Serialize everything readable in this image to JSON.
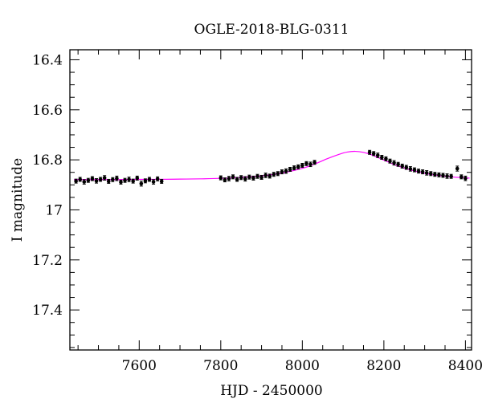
{
  "chart_data": {
    "type": "scatter",
    "title": "OGLE-2018-BLG-0311",
    "xlabel": "HJD - 2450000",
    "ylabel": "I magnitude",
    "xlim": [
      7430,
      8415
    ],
    "ylim": [
      17.56,
      16.36
    ],
    "y_inverted": true,
    "x_ticks": [
      {
        "value": 7600,
        "label": "7600"
      },
      {
        "value": 7800,
        "label": "7800"
      },
      {
        "value": 8000,
        "label": "8000"
      },
      {
        "value": 8200,
        "label": "8200"
      },
      {
        "value": 8400,
        "label": "8400"
      }
    ],
    "y_ticks": [
      {
        "value": 16.4,
        "label": "16.4"
      },
      {
        "value": 16.6,
        "label": "16.6"
      },
      {
        "value": 16.8,
        "label": "16.8"
      },
      {
        "value": 17.0,
        "label": "17"
      },
      {
        "value": 17.2,
        "label": "17.2"
      },
      {
        "value": 17.4,
        "label": "17.4"
      }
    ],
    "grid": false,
    "legend": "none",
    "colors": {
      "points": "#000000",
      "model": "#ff00ff",
      "axes": "#000000"
    },
    "series": [
      {
        "kind": "points_with_errorbars",
        "x": [
          7445,
          7455,
          7465,
          7475,
          7485,
          7495,
          7505,
          7515,
          7525,
          7535,
          7545,
          7555,
          7565,
          7575,
          7585,
          7595,
          7605,
          7615,
          7625,
          7635,
          7645,
          7655,
          7800,
          7810,
          7820,
          7830,
          7840,
          7850,
          7860,
          7870,
          7880,
          7890,
          7900,
          7910,
          7920,
          7930,
          7940,
          7950,
          7960,
          7970,
          7980,
          7990,
          8000,
          8010,
          8020,
          8030,
          8165,
          8175,
          8185,
          8195,
          8205,
          8215,
          8225,
          8235,
          8245,
          8255,
          8265,
          8275,
          8285,
          8295,
          8305,
          8315,
          8325,
          8335,
          8345,
          8355,
          8365,
          8380,
          8390,
          8400
        ],
        "y": [
          16.885,
          16.878,
          16.888,
          16.882,
          16.875,
          16.884,
          16.878,
          16.872,
          16.886,
          16.879,
          16.874,
          16.889,
          16.882,
          16.878,
          16.885,
          16.873,
          16.895,
          16.884,
          16.878,
          16.888,
          16.876,
          16.886,
          16.872,
          16.88,
          16.875,
          16.868,
          16.878,
          16.871,
          16.876,
          16.869,
          16.873,
          16.866,
          16.87,
          16.862,
          16.865,
          16.858,
          16.855,
          16.848,
          16.845,
          16.838,
          16.832,
          16.828,
          16.822,
          16.815,
          16.818,
          16.81,
          16.77,
          16.775,
          16.782,
          16.79,
          16.796,
          16.805,
          16.812,
          16.818,
          16.825,
          16.83,
          16.836,
          16.84,
          16.845,
          16.848,
          16.852,
          16.855,
          16.858,
          16.86,
          16.862,
          16.865,
          16.866,
          16.835,
          16.868,
          16.874
        ],
        "yerr": [
          0.008,
          0.008,
          0.009,
          0.008,
          0.008,
          0.009,
          0.008,
          0.009,
          0.008,
          0.008,
          0.009,
          0.008,
          0.008,
          0.009,
          0.008,
          0.008,
          0.01,
          0.008,
          0.008,
          0.009,
          0.008,
          0.008,
          0.008,
          0.008,
          0.009,
          0.008,
          0.008,
          0.008,
          0.009,
          0.008,
          0.008,
          0.008,
          0.008,
          0.009,
          0.008,
          0.008,
          0.008,
          0.008,
          0.009,
          0.008,
          0.008,
          0.008,
          0.008,
          0.008,
          0.009,
          0.008,
          0.008,
          0.008,
          0.009,
          0.008,
          0.008,
          0.008,
          0.009,
          0.008,
          0.008,
          0.008,
          0.009,
          0.008,
          0.008,
          0.008,
          0.009,
          0.008,
          0.008,
          0.008,
          0.008,
          0.009,
          0.008,
          0.01,
          0.008,
          0.009
        ]
      },
      {
        "kind": "model_curve",
        "x": [
          7440,
          7500,
          7550,
          7600,
          7650,
          7700,
          7750,
          7800,
          7850,
          7900,
          7950,
          8000,
          8030,
          8060,
          8090,
          8110,
          8130,
          8150,
          8170,
          8200,
          8230,
          8260,
          8300,
          8340,
          8380,
          8410
        ],
        "y": [
          16.879,
          16.879,
          16.879,
          16.878,
          16.878,
          16.877,
          16.876,
          16.874,
          16.87,
          16.864,
          16.853,
          16.834,
          16.817,
          16.796,
          16.778,
          16.769,
          16.766,
          16.77,
          16.78,
          16.801,
          16.822,
          16.838,
          16.854,
          16.864,
          16.87,
          16.873
        ]
      }
    ]
  }
}
